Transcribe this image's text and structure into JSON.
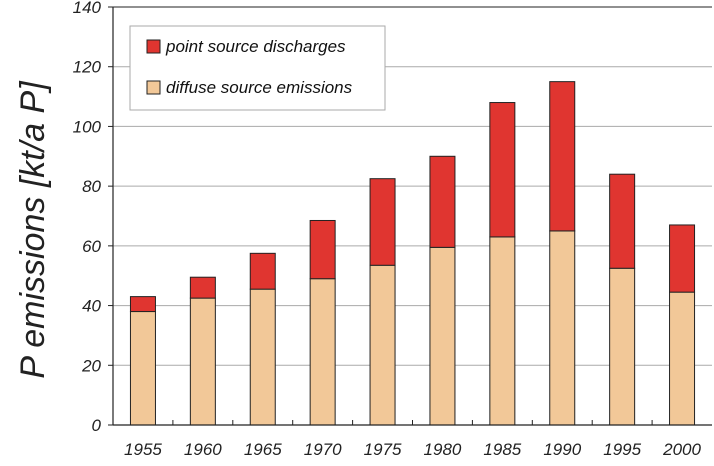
{
  "chart_data": {
    "type": "bar",
    "stacked": true,
    "title": "",
    "xlabel": "",
    "ylabel": "P emissions [kt/a P]",
    "ylim": [
      0,
      140
    ],
    "yticks": [
      0,
      20,
      40,
      60,
      80,
      100,
      120,
      140
    ],
    "categories": [
      "1955",
      "1960",
      "1965",
      "1970",
      "1975",
      "1980",
      "1985",
      "1990",
      "1995",
      "2000"
    ],
    "series": [
      {
        "name": "diffuse source emissions",
        "color": "#f2c898",
        "values": [
          38,
          42.5,
          45.5,
          49,
          53.5,
          59.5,
          63,
          65,
          52.5,
          44.5
        ]
      },
      {
        "name": "point source discharges",
        "color": "#e03530",
        "values": [
          5,
          7,
          12,
          19.5,
          29,
          30.5,
          45,
          50,
          31.5,
          22.5
        ]
      }
    ],
    "legend": {
      "position": "top-left",
      "order": [
        "point source discharges",
        "diffuse source emissions"
      ]
    },
    "grid": true
  }
}
